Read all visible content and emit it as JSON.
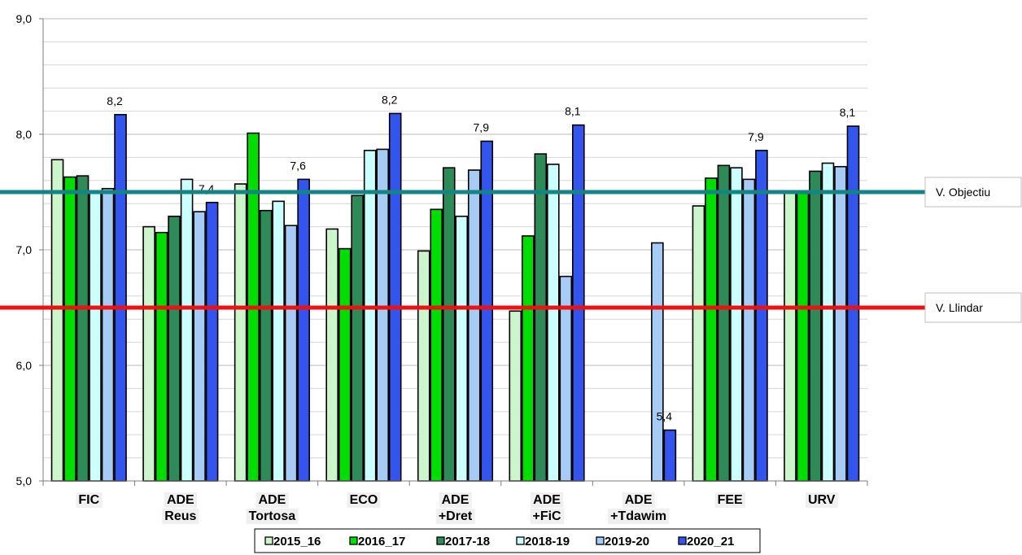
{
  "chart_data": {
    "type": "bar",
    "title": "",
    "xlabel": "",
    "ylabel": "",
    "ylim": [
      5.0,
      9.0
    ],
    "yticks": [
      5.0,
      6.0,
      7.0,
      8.0,
      9.0
    ],
    "ytick_labels": [
      "5,0",
      "6,0",
      "7,0",
      "8,0",
      "9,0"
    ],
    "grid": true,
    "legend_position": "bottom",
    "categories": [
      [
        "FIC"
      ],
      [
        "ADE",
        "Reus"
      ],
      [
        "ADE",
        "Tortosa"
      ],
      [
        "ECO"
      ],
      [
        "ADE",
        "+Dret"
      ],
      [
        "ADE",
        "+FiC"
      ],
      [
        "ADE",
        "+Tdawim"
      ],
      [
        "FEE"
      ],
      [
        "URV"
      ]
    ],
    "series": [
      {
        "name": "2015_16",
        "color": "#ccf5cc",
        "values": [
          7.78,
          7.2,
          7.57,
          7.18,
          6.99,
          6.47,
          null,
          7.38,
          7.5
        ]
      },
      {
        "name": "2016_17",
        "color": "#00dd00",
        "values": [
          7.63,
          7.15,
          8.01,
          7.01,
          7.35,
          7.12,
          null,
          7.62,
          7.5
        ]
      },
      {
        "name": "2017-18",
        "color": "#2e8b57",
        "values": [
          7.64,
          7.29,
          7.34,
          7.47,
          7.71,
          7.83,
          null,
          7.73,
          7.68
        ]
      },
      {
        "name": "2018-19",
        "color": "#ccffff",
        "values": [
          7.5,
          7.61,
          7.42,
          7.86,
          7.29,
          7.74,
          null,
          7.71,
          7.75
        ]
      },
      {
        "name": "2019-20",
        "color": "#a6cbf5",
        "values": [
          7.53,
          7.33,
          7.21,
          7.87,
          7.69,
          6.77,
          7.06,
          7.61,
          7.72
        ]
      },
      {
        "name": "2020_21",
        "color": "#3355ee",
        "values": [
          8.17,
          7.41,
          7.61,
          8.18,
          7.94,
          8.08,
          5.44,
          7.86,
          8.07
        ]
      }
    ],
    "data_labels": [
      "8,2",
      "7,4",
      "7,6",
      "8,2",
      "7,9",
      "8,1",
      "5,4",
      "7,9",
      "8,1"
    ],
    "reference_lines": [
      {
        "label": "V. Objectiu",
        "value": 7.5,
        "color": "#138585"
      },
      {
        "label": "V. Llindar",
        "value": 6.5,
        "color": "#ee1111"
      }
    ]
  }
}
